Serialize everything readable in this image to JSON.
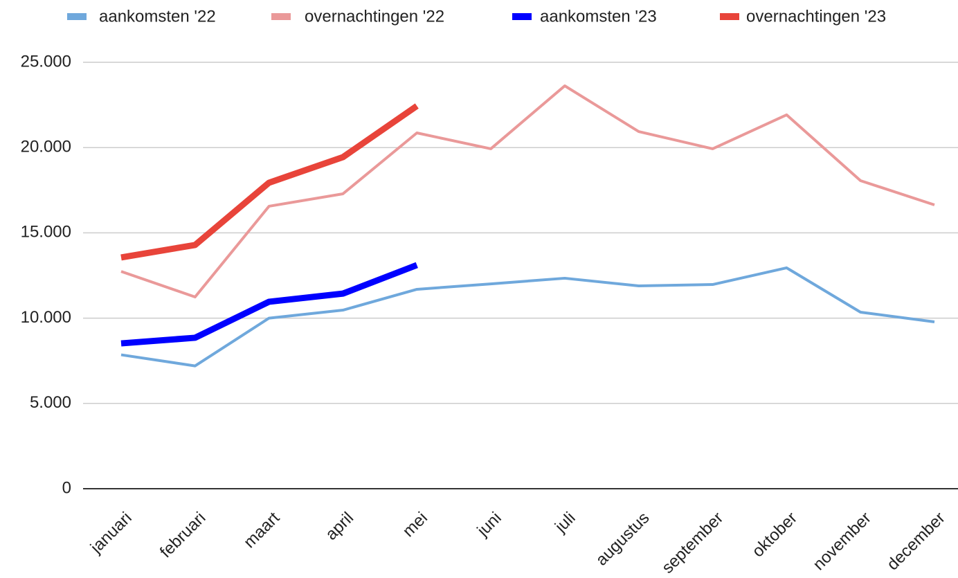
{
  "chart_data": {
    "type": "line",
    "categories": [
      "januari",
      "februari",
      "maart",
      "april",
      "mei",
      "juni",
      "juli",
      "augustus",
      "september",
      "oktober",
      "november",
      "december"
    ],
    "series": [
      {
        "name": "aankomsten '22",
        "color": "#6fa8dc",
        "width": 4,
        "values": [
          7850,
          7200,
          10000,
          10470,
          11690,
          12010,
          12340,
          11890,
          11970,
          12950,
          10350,
          9780
        ]
      },
      {
        "name": "overnachtingen '22",
        "color": "#ea9999",
        "width": 4,
        "values": [
          12740,
          11240,
          16560,
          17290,
          20860,
          19930,
          23620,
          20940,
          19930,
          21920,
          18060,
          16640
        ]
      },
      {
        "name": "aankomsten '23",
        "color": "#0000ff",
        "width": 9,
        "values": [
          8520,
          8850,
          10960,
          11440,
          13110,
          null,
          null,
          null,
          null,
          null,
          null,
          null
        ]
      },
      {
        "name": "overnachtingen '23",
        "color": "#e8443a",
        "width": 9,
        "values": [
          13560,
          14290,
          17940,
          19440,
          22440,
          null,
          null,
          null,
          null,
          null,
          null,
          null
        ]
      }
    ],
    "ylim": [
      0,
      25000
    ],
    "yticks": [
      0,
      {
        "value": 5000,
        "label": "5.000"
      },
      {
        "value": 10000,
        "label": "10.000"
      },
      {
        "value": 15000,
        "label": "15.000"
      },
      {
        "value": 20000,
        "label": "20.000"
      },
      {
        "value": 25000,
        "label": "25.000"
      }
    ],
    "grid": true,
    "legend": "top"
  }
}
